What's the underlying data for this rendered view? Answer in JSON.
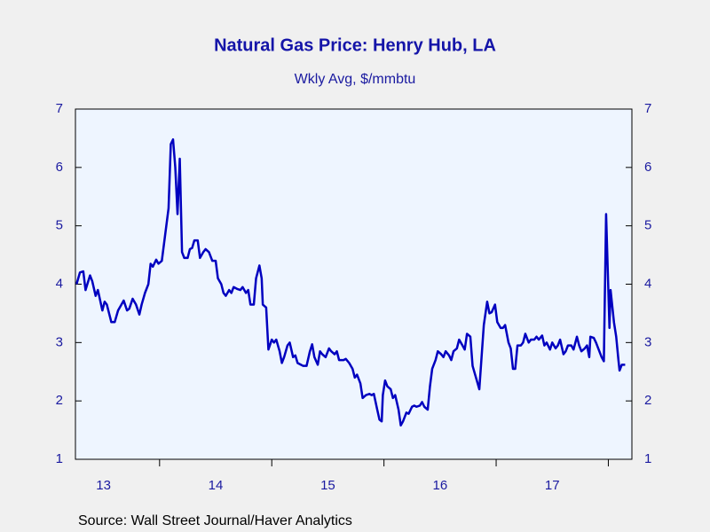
{
  "chart_data": {
    "type": "line",
    "title": "Natural Gas Price: Henry Hub, LA",
    "subtitle": "Wkly Avg, $/mmbtu",
    "source": "Source:  Wall Street Journal/Haver Analytics",
    "color": "#0000c0",
    "xlim": [
      2013.25,
      2018.21
    ],
    "xticks": [
      {
        "value": 2013.5,
        "label": "13"
      },
      {
        "value": 2014.5,
        "label": "14"
      },
      {
        "value": 2015.5,
        "label": "15"
      },
      {
        "value": 2016.5,
        "label": "16"
      },
      {
        "value": 2017.5,
        "label": "17"
      }
    ],
    "ylim": [
      1,
      7
    ],
    "yticks": [
      1,
      2,
      3,
      4,
      5,
      6,
      7
    ],
    "x": [
      2013.26,
      2013.29,
      2013.32,
      2013.34,
      2013.38,
      2013.4,
      2013.43,
      2013.45,
      2013.49,
      2013.51,
      2013.53,
      2013.57,
      2013.6,
      2013.63,
      2013.66,
      2013.68,
      2013.71,
      2013.73,
      2013.76,
      2013.79,
      2013.82,
      2013.84,
      2013.87,
      2013.9,
      2013.92,
      2013.94,
      2013.97,
      2013.99,
      2014.02,
      2014.06,
      2014.08,
      2014.1,
      2014.12,
      2014.14,
      2014.16,
      2014.18,
      2014.2,
      2014.22,
      2014.25,
      2014.27,
      2014.29,
      2014.31,
      2014.34,
      2014.36,
      2014.39,
      2014.41,
      2014.44,
      2014.47,
      2014.5,
      2014.52,
      2014.55,
      2014.57,
      2014.59,
      2014.62,
      2014.64,
      2014.66,
      2014.69,
      2014.72,
      2014.74,
      2014.77,
      2014.79,
      2014.81,
      2014.84,
      2014.86,
      2014.89,
      2014.91,
      2014.92,
      2014.95,
      2014.97,
      2015.0,
      2015.02,
      2015.04,
      2015.07,
      2015.09,
      2015.11,
      2015.14,
      2015.16,
      2015.19,
      2015.21,
      2015.23,
      2015.26,
      2015.28,
      2015.31,
      2015.34,
      2015.36,
      2015.38,
      2015.41,
      2015.43,
      2015.45,
      2015.48,
      2015.51,
      2015.53,
      2015.56,
      2015.58,
      2015.6,
      2015.64,
      2015.66,
      2015.69,
      2015.72,
      2015.74,
      2015.76,
      2015.79,
      2015.81,
      2015.84,
      2015.87,
      2015.89,
      2015.91,
      2015.94,
      2015.96,
      2015.98,
      2015.99,
      2016.01,
      2016.03,
      2016.06,
      2016.08,
      2016.1,
      2016.13,
      2016.15,
      2016.17,
      2016.2,
      2016.22,
      2016.25,
      2016.27,
      2016.29,
      2016.32,
      2016.34,
      2016.36,
      2016.39,
      2016.41,
      2016.43,
      2016.46,
      2016.48,
      2016.51,
      2016.53,
      2016.55,
      2016.58,
      2016.6,
      2016.62,
      2016.65,
      2016.67,
      2016.7,
      2016.72,
      2016.74,
      2016.77,
      2016.79,
      2016.82,
      2016.85,
      2016.87,
      2016.89,
      2016.92,
      2016.94,
      2016.96,
      2016.99,
      2017.01,
      2017.04,
      2017.06,
      2017.08,
      2017.11,
      2017.13,
      2017.15,
      2017.17,
      2017.19,
      2017.22,
      2017.24,
      2017.26,
      2017.29,
      2017.31,
      2017.34,
      2017.36,
      2017.38,
      2017.41,
      2017.43,
      2017.45,
      2017.48,
      2017.5,
      2017.53,
      2017.55,
      2017.57,
      2017.6,
      2017.62,
      2017.64,
      2017.67,
      2017.69,
      2017.72,
      2017.74,
      2017.76,
      2017.79,
      2017.81,
      2017.83,
      2017.84,
      2017.87,
      2017.89,
      2017.91,
      2017.94,
      2017.96,
      2017.98,
      2018.01,
      2018.02,
      2018.05,
      2018.07,
      2018.09,
      2018.1,
      2018.12,
      2018.15
    ],
    "values": [
      4.0,
      4.2,
      4.22,
      3.9,
      4.15,
      4.05,
      3.8,
      3.9,
      3.55,
      3.7,
      3.65,
      3.35,
      3.35,
      3.55,
      3.65,
      3.72,
      3.55,
      3.58,
      3.75,
      3.65,
      3.48,
      3.65,
      3.85,
      4.0,
      4.35,
      4.3,
      4.42,
      4.35,
      4.4,
      5.0,
      5.3,
      6.4,
      6.48,
      6.0,
      5.2,
      6.15,
      4.55,
      4.45,
      4.45,
      4.6,
      4.62,
      4.75,
      4.75,
      4.45,
      4.55,
      4.6,
      4.55,
      4.4,
      4.4,
      4.1,
      4.0,
      3.85,
      3.8,
      3.9,
      3.85,
      3.95,
      3.92,
      3.9,
      3.95,
      3.85,
      3.9,
      3.65,
      3.65,
      4.1,
      4.32,
      4.1,
      3.65,
      3.6,
      2.88,
      3.05,
      3.0,
      3.05,
      2.85,
      2.65,
      2.75,
      2.95,
      3.0,
      2.75,
      2.78,
      2.65,
      2.62,
      2.6,
      2.6,
      2.85,
      2.97,
      2.75,
      2.62,
      2.85,
      2.8,
      2.75,
      2.9,
      2.85,
      2.8,
      2.85,
      2.7,
      2.7,
      2.72,
      2.65,
      2.55,
      2.4,
      2.45,
      2.3,
      2.05,
      2.1,
      2.12,
      2.1,
      2.12,
      1.85,
      1.68,
      1.65,
      2.1,
      2.35,
      2.25,
      2.2,
      2.05,
      2.1,
      1.85,
      1.58,
      1.65,
      1.8,
      1.78,
      1.9,
      1.92,
      1.9,
      1.92,
      1.98,
      1.9,
      1.85,
      2.25,
      2.55,
      2.7,
      2.85,
      2.8,
      2.75,
      2.85,
      2.78,
      2.7,
      2.85,
      2.9,
      3.05,
      2.95,
      2.88,
      3.15,
      3.1,
      2.6,
      2.4,
      2.2,
      2.75,
      3.3,
      3.7,
      3.5,
      3.52,
      3.65,
      3.35,
      3.25,
      3.25,
      3.3,
      3.0,
      2.9,
      2.55,
      2.55,
      2.95,
      2.95,
      3.0,
      3.15,
      3.0,
      3.05,
      3.05,
      3.1,
      3.05,
      3.12,
      2.95,
      3.0,
      2.88,
      3.0,
      2.9,
      2.95,
      3.05,
      2.8,
      2.85,
      2.95,
      2.95,
      2.88,
      3.1,
      2.95,
      2.85,
      2.9,
      2.95,
      2.75,
      3.1,
      3.08,
      3.0,
      2.9,
      2.75,
      2.68,
      5.2,
      3.25,
      3.9,
      3.35,
      3.1,
      2.7,
      2.52,
      2.62,
      2.62
    ]
  }
}
